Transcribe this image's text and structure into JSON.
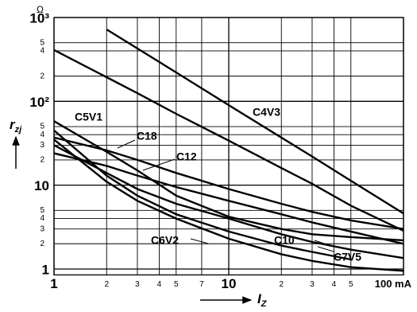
{
  "chart_data": {
    "type": "line",
    "log_x": true,
    "log_y": true,
    "grid": true,
    "yunit": "Ω",
    "ylabel": "r",
    "ylabel_sub": "zj",
    "xlabel": "I",
    "xlabel_sub": "Z",
    "x": [
      1,
      2,
      3,
      5,
      10,
      20,
      30,
      50,
      100
    ],
    "xlim": [
      1,
      100
    ],
    "ylim": [
      0.85,
      1000
    ],
    "xticks": [
      1,
      2,
      3,
      4,
      5,
      7,
      10,
      {
        "value": 20,
        "label": "2"
      },
      {
        "value": 30,
        "label": "3"
      },
      {
        "value": 40,
        "label": "4"
      },
      {
        "value": 50,
        "label": "5"
      },
      {
        "value": 100,
        "label": "100 mA"
      }
    ],
    "yticks": [
      1,
      2,
      3,
      4,
      5,
      10,
      {
        "value": 20,
        "label": "2"
      },
      {
        "value": 30,
        "label": "3"
      },
      {
        "value": 40,
        "label": "4"
      },
      {
        "value": 50,
        "label": "5"
      },
      {
        "value": 100,
        "label": "10²"
      },
      {
        "value": 200,
        "label": "2"
      },
      {
        "value": 400,
        "label": "4"
      },
      {
        "value": 500,
        "label": "5"
      },
      {
        "value": 1000,
        "label": "10³"
      }
    ],
    "series": [
      {
        "name": "C4V3",
        "color": "#000000",
        "values": [
          null,
          720,
          427,
          221,
          90,
          37,
          22,
          11.3,
          4.6
        ]
      },
      {
        "color": "#000000",
        "values": [
          410,
          194,
          125,
          71,
          34,
          16,
          10.4,
          5.7,
          2.86
        ]
      },
      {
        "name": "C5V1",
        "color": "#000000",
        "values": [
          58,
          25,
          15,
          7.5,
          4.2,
          3.0,
          2.6,
          2.4,
          2.2
        ]
      },
      {
        "name": "C18",
        "color": "#000000",
        "values": [
          37,
          26,
          20,
          14,
          9,
          6,
          4.8,
          3.8,
          3.0
        ]
      },
      {
        "name": "C12",
        "color": "#000000",
        "values": [
          24,
          17,
          13,
          9.5,
          6.5,
          4.5,
          3.6,
          2.8,
          2.0
        ]
      },
      {
        "name": "C10",
        "color": "#000000",
        "values": [
          30,
          14,
          9,
          6,
          4,
          2.6,
          2.1,
          1.7,
          1.35
        ]
      },
      {
        "name": "C6V2",
        "color": "#000000",
        "values": [
          45,
          13,
          7.5,
          4.5,
          2.8,
          1.9,
          1.6,
          1.3,
          null
        ]
      },
      {
        "name": "C7V5",
        "color": "#000000",
        "values": [
          35,
          11,
          6.5,
          4.0,
          2.3,
          1.5,
          1.25,
          1.05,
          0.95
        ]
      }
    ]
  }
}
